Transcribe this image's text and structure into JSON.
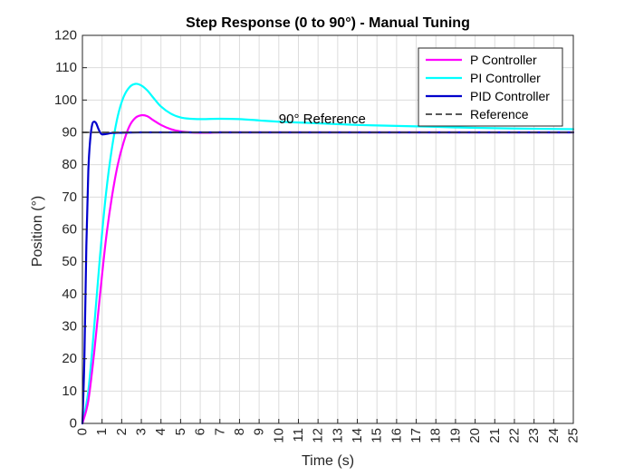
{
  "chart_data": {
    "type": "line",
    "title": "Step Response (0 to 90°) - Manual Tuning",
    "xlabel": "Time (s)",
    "ylabel": "Position (°)",
    "xlim": [
      0,
      25
    ],
    "ylim": [
      0,
      120
    ],
    "xticks": [
      0,
      1,
      2,
      3,
      4,
      5,
      6,
      7,
      8,
      9,
      10,
      11,
      12,
      13,
      14,
      15,
      16,
      17,
      18,
      19,
      20,
      21,
      22,
      23,
      24,
      25
    ],
    "yticks": [
      0,
      10,
      20,
      30,
      40,
      50,
      60,
      70,
      80,
      90,
      100,
      110,
      120
    ],
    "grid": true,
    "legend_position": "top-right",
    "annotation": {
      "text": "90° Reference",
      "x": 10,
      "y": 92
    },
    "series": [
      {
        "name": "P Controller",
        "color": "#ff00ff",
        "style": "solid",
        "x": [
          0,
          0.3,
          0.6,
          0.9,
          1.2,
          1.5,
          1.8,
          2.1,
          2.4,
          2.7,
          3.0,
          3.3,
          3.6,
          4.0,
          4.5,
          5.0,
          5.5,
          6.0,
          6.5,
          7.0,
          8.0,
          10.0,
          15.0,
          20.0,
          25.0
        ],
        "y": [
          0,
          7,
          22,
          40,
          57,
          70,
          80,
          87,
          92,
          94.5,
          95.3,
          95.0,
          93.8,
          92.3,
          91.0,
          90.3,
          90.0,
          89.9,
          89.9,
          90.0,
          90.0,
          90.0,
          90.0,
          90.0,
          90.0
        ]
      },
      {
        "name": "PI Controller",
        "color": "#00ffff",
        "style": "solid",
        "x": [
          0,
          0.3,
          0.6,
          0.9,
          1.2,
          1.5,
          1.8,
          2.1,
          2.4,
          2.7,
          3.0,
          3.3,
          3.6,
          4.0,
          4.5,
          5.0,
          5.5,
          6.0,
          7.0,
          8.0,
          9.0,
          10.0,
          12.0,
          14.0,
          16.0,
          18.0,
          20.0,
          22.0,
          25.0
        ],
        "y": [
          0,
          10,
          30,
          52,
          71,
          85,
          95,
          101,
          104,
          105,
          104.5,
          103,
          100.8,
          98,
          95.8,
          94.6,
          94.2,
          94.1,
          94.2,
          94.1,
          93.7,
          93.3,
          92.8,
          92.3,
          92.0,
          91.7,
          91.4,
          91.2,
          91.0
        ]
      },
      {
        "name": "PID Controller",
        "color": "#0000cc",
        "style": "solid",
        "x": [
          0,
          0.1,
          0.2,
          0.3,
          0.4,
          0.5,
          0.6,
          0.7,
          0.8,
          0.9,
          1.0,
          1.2,
          1.5,
          2.0,
          3.0,
          5.0,
          10.0,
          15.0,
          20.0,
          25.0
        ],
        "y": [
          0,
          20,
          55,
          78,
          88,
          92.5,
          93.3,
          92.8,
          91.3,
          90.0,
          89.4,
          89.5,
          89.8,
          89.9,
          90.0,
          90.0,
          90.0,
          90.0,
          90.0,
          90.0
        ]
      },
      {
        "name": "Reference",
        "color": "#404040",
        "style": "dashed",
        "x": [
          0,
          25
        ],
        "y": [
          90,
          90
        ]
      }
    ]
  }
}
